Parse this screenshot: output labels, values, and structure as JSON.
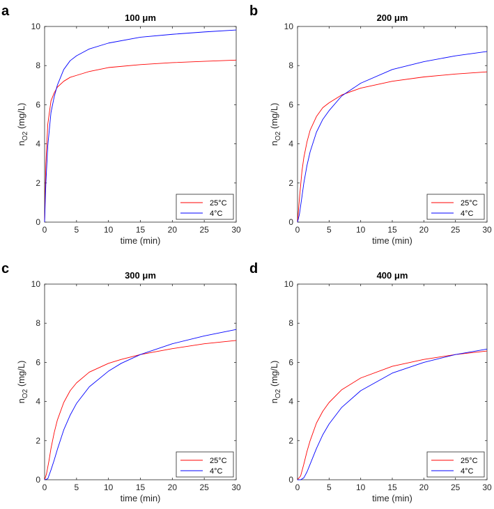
{
  "colors": {
    "series_25C": "#ff0000",
    "series_4C": "#0000ff",
    "axis": "#262626",
    "background": "#ffffff"
  },
  "chart_data": [
    {
      "panel": "a",
      "type": "line",
      "title": "100 μm",
      "xlabel": "time (min)",
      "ylabel_main": "n",
      "ylabel_sub": "O2",
      "ylabel_unit": " (mg/L)",
      "xlim": [
        0,
        30
      ],
      "ylim": [
        0,
        10
      ],
      "xticks": [
        0,
        5,
        10,
        15,
        20,
        25,
        30
      ],
      "yticks": [
        0,
        2,
        4,
        6,
        8,
        10
      ],
      "legend": "bottom-right",
      "series": [
        {
          "name": "25°C",
          "x": [
            0,
            0.2,
            0.5,
            1,
            1.5,
            2,
            3,
            4,
            5,
            7,
            10,
            15,
            20,
            25,
            30
          ],
          "values": [
            0,
            3.0,
            5.0,
            6.2,
            6.6,
            6.9,
            7.2,
            7.4,
            7.5,
            7.7,
            7.9,
            8.05,
            8.15,
            8.22,
            8.28
          ]
        },
        {
          "name": "4°C",
          "x": [
            0,
            0.2,
            0.5,
            1,
            1.5,
            2,
            3,
            4,
            5,
            7,
            10,
            15,
            20,
            25,
            30
          ],
          "values": [
            0,
            2.0,
            3.9,
            5.6,
            6.4,
            7.0,
            7.8,
            8.25,
            8.5,
            8.85,
            9.15,
            9.45,
            9.6,
            9.72,
            9.82
          ]
        }
      ]
    },
    {
      "panel": "b",
      "type": "line",
      "title": "200 μm",
      "xlabel": "time (min)",
      "ylabel_main": "n",
      "ylabel_sub": "O2",
      "ylabel_unit": " (mg/L)",
      "xlim": [
        0,
        30
      ],
      "ylim": [
        0,
        10
      ],
      "xticks": [
        0,
        5,
        10,
        15,
        20,
        25,
        30
      ],
      "yticks": [
        0,
        2,
        4,
        6,
        8,
        10
      ],
      "legend": "bottom-right",
      "series": [
        {
          "name": "25°C",
          "x": [
            0,
            0.3,
            0.7,
            1,
            1.5,
            2,
            3,
            4,
            5,
            7,
            10,
            15,
            20,
            25,
            30
          ],
          "values": [
            0,
            1.2,
            2.6,
            3.3,
            4.1,
            4.7,
            5.4,
            5.85,
            6.1,
            6.5,
            6.85,
            7.2,
            7.42,
            7.57,
            7.68
          ]
        },
        {
          "name": "4°C",
          "x": [
            0,
            0.3,
            0.7,
            1,
            1.5,
            2,
            3,
            4,
            5,
            7,
            10,
            15,
            20,
            25,
            30
          ],
          "values": [
            0,
            0.4,
            1.3,
            2.0,
            2.9,
            3.6,
            4.6,
            5.25,
            5.7,
            6.45,
            7.1,
            7.8,
            8.2,
            8.5,
            8.72
          ]
        }
      ]
    },
    {
      "panel": "c",
      "type": "line",
      "title": "300 μm",
      "xlabel": "time (min)",
      "ylabel_main": "n",
      "ylabel_sub": "O2",
      "ylabel_unit": " (mg/L)",
      "xlim": [
        0,
        30
      ],
      "ylim": [
        0,
        10
      ],
      "xticks": [
        0,
        5,
        10,
        15,
        20,
        25,
        30
      ],
      "yticks": [
        0,
        2,
        4,
        6,
        8,
        10
      ],
      "legend": "bottom-right",
      "series": [
        {
          "name": "25°C",
          "x": [
            0,
            0.3,
            0.7,
            1,
            1.5,
            2,
            3,
            4,
            5,
            7,
            10,
            12,
            15,
            20,
            25,
            30
          ],
          "values": [
            0,
            0.3,
            1.0,
            1.6,
            2.4,
            3.05,
            3.95,
            4.55,
            4.95,
            5.5,
            5.95,
            6.15,
            6.4,
            6.7,
            6.95,
            7.12
          ]
        },
        {
          "name": "4°C",
          "x": [
            0,
            0.5,
            1,
            1.5,
            2,
            3,
            4,
            5,
            7,
            10,
            12,
            15,
            20,
            25,
            30
          ],
          "values": [
            0,
            0.05,
            0.5,
            1.0,
            1.55,
            2.55,
            3.3,
            3.9,
            4.75,
            5.55,
            5.95,
            6.4,
            6.95,
            7.35,
            7.68
          ]
        }
      ]
    },
    {
      "panel": "d",
      "type": "line",
      "title": "400 μm",
      "xlabel": "time (min)",
      "ylabel_main": "n",
      "ylabel_sub": "O2",
      "ylabel_unit": " (mg/L)",
      "xlim": [
        0,
        30
      ],
      "ylim": [
        0,
        10
      ],
      "xticks": [
        0,
        5,
        10,
        15,
        20,
        25,
        30
      ],
      "yticks": [
        0,
        2,
        4,
        6,
        8,
        10
      ],
      "legend": "bottom-right",
      "series": [
        {
          "name": "25°C",
          "x": [
            0,
            0.5,
            1,
            1.5,
            2,
            3,
            4,
            5,
            7,
            10,
            15,
            20,
            25,
            30
          ],
          "values": [
            0,
            0.2,
            0.8,
            1.45,
            2.0,
            2.9,
            3.5,
            3.95,
            4.6,
            5.2,
            5.8,
            6.15,
            6.4,
            6.58
          ]
        },
        {
          "name": "4°C",
          "x": [
            0,
            0.5,
            1,
            1.5,
            2,
            3,
            4,
            5,
            7,
            10,
            15,
            20,
            25,
            30
          ],
          "values": [
            0,
            0,
            0.1,
            0.4,
            0.8,
            1.6,
            2.3,
            2.85,
            3.7,
            4.55,
            5.45,
            6.0,
            6.4,
            6.68
          ]
        }
      ]
    }
  ]
}
